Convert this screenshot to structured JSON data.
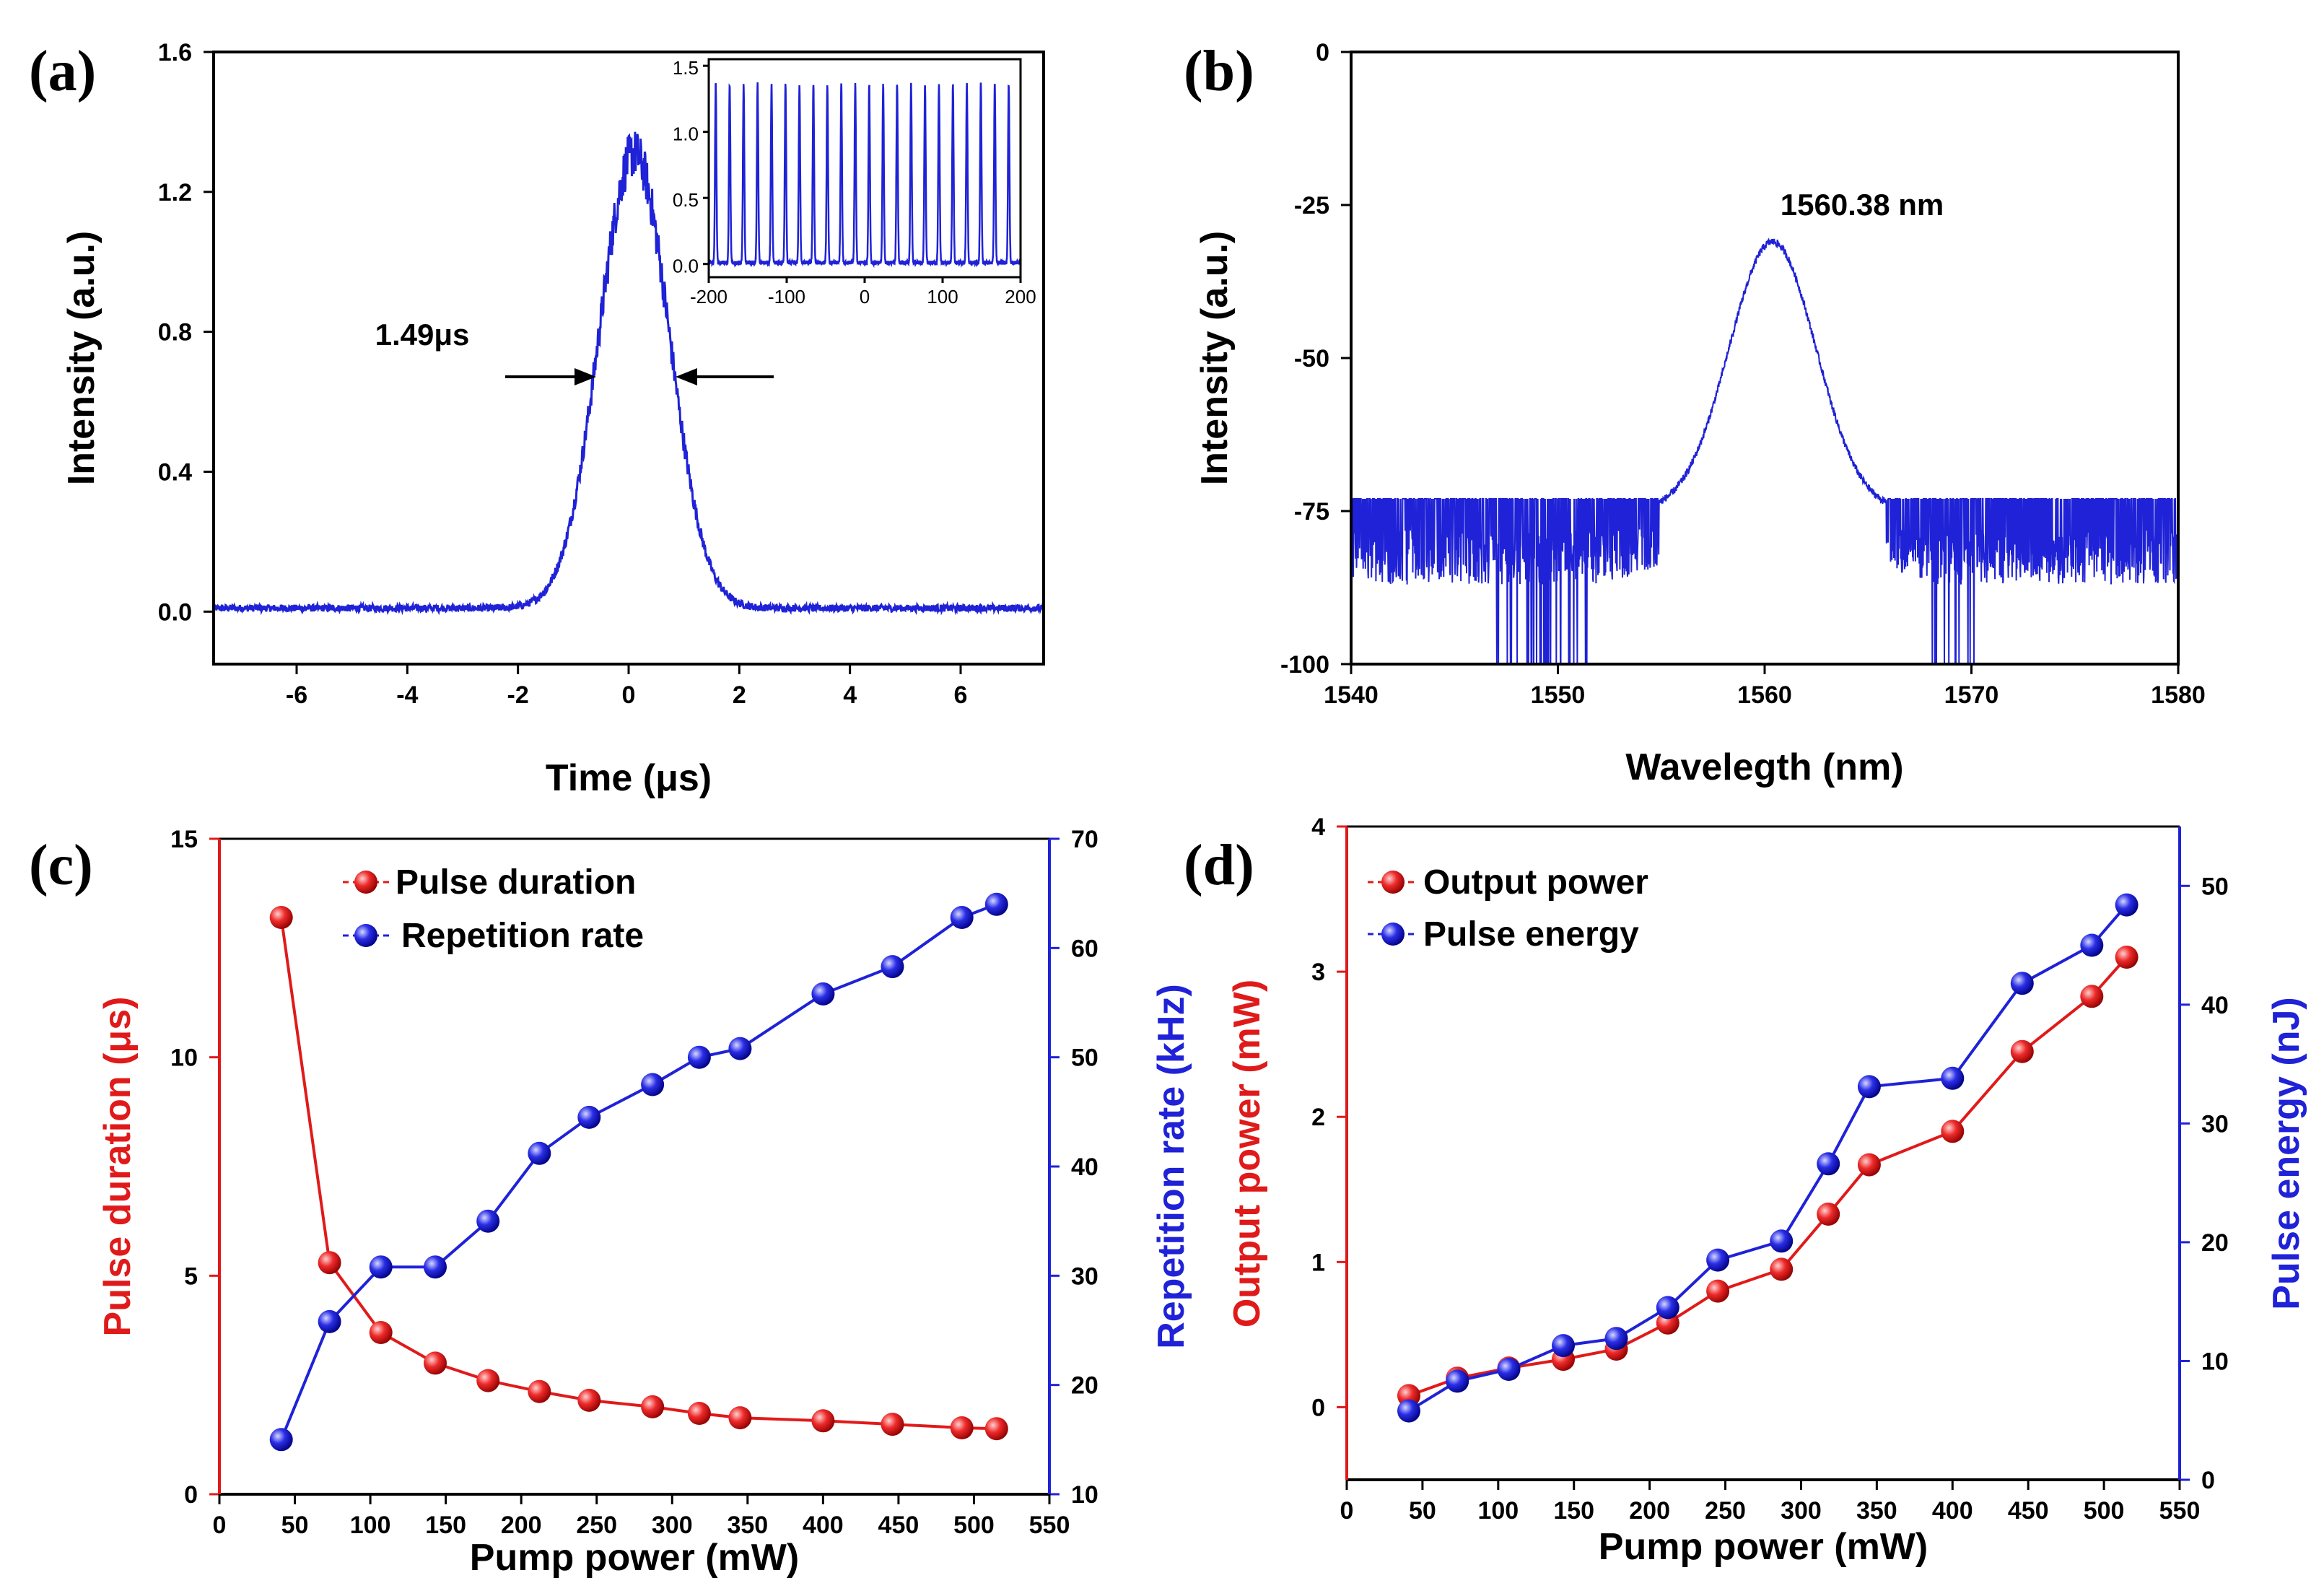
{
  "colors": {
    "blue": "#1f22d6",
    "red": "#e01a1a",
    "axis": "#000000"
  },
  "chart_data": [
    {
      "id": "a",
      "type": "line",
      "panel_label": "(a)",
      "xlabel": "Time (μs)",
      "ylabel": "Intensity (a.u.)",
      "xlim": [
        -7.5,
        7.5
      ],
      "ylim": [
        -0.15,
        1.6
      ],
      "xticks": [
        "-6",
        "-4",
        "-2",
        "0",
        "2",
        "4",
        "6"
      ],
      "yticks": [
        "0.0",
        "0.4",
        "0.8",
        "1.2",
        "1.6"
      ],
      "series": [
        {
          "name": "pulse",
          "color": "#1f22d6",
          "center": 0.1,
          "fwhm": 1.49,
          "peak": 1.3,
          "baseline": 0.01
        }
      ],
      "annotation": "1.49μs",
      "inset": {
        "xlim": [
          -200,
          200
        ],
        "ylim": [
          -0.1,
          1.55
        ],
        "xticks": [
          "-200",
          "-100",
          "0",
          "100",
          "200"
        ],
        "yticks": [
          "0.0",
          "0.5",
          "1.0",
          "1.5"
        ],
        "pulse_period": 17.9,
        "pulse_peak": 1.35
      }
    },
    {
      "id": "b",
      "type": "line",
      "panel_label": "(b)",
      "xlabel": "Wavelegth (nm)",
      "ylabel": "Intensity (a.u.)",
      "xlim": [
        1540,
        1580
      ],
      "ylim": [
        -100,
        0
      ],
      "xticks": [
        "1540",
        "1550",
        "1560",
        "1570",
        "1580"
      ],
      "yticks": [
        "-100",
        "-75",
        "-50",
        "-25",
        "0"
      ],
      "series": [
        {
          "name": "spectrum",
          "color": "#1f22d6",
          "peak_wavelength": 1560.38,
          "peak_level": -31,
          "noise_floor": -75
        }
      ],
      "annotation": "1560.38 nm"
    },
    {
      "id": "c",
      "type": "line",
      "panel_label": "(c)",
      "xlabel": "Pump power (mW)",
      "ylabel": "Pulse duration (μs)",
      "y2label": "Repetition rate (kHz)",
      "xlim": [
        0,
        550
      ],
      "ylim": [
        0,
        15
      ],
      "y2lim": [
        10,
        70
      ],
      "xticks": [
        "0",
        "50",
        "100",
        "150",
        "200",
        "250",
        "300",
        "350",
        "400",
        "450",
        "500",
        "550"
      ],
      "yticks": [
        "0",
        "5",
        "10",
        "15"
      ],
      "y2ticks": [
        "10",
        "20",
        "30",
        "40",
        "50",
        "60",
        "70"
      ],
      "x": [
        41,
        73,
        107,
        143,
        178,
        212,
        245,
        287,
        318,
        345,
        400,
        446,
        492,
        515
      ],
      "series": [
        {
          "name": "Pulse duration",
          "axis": "left",
          "color": "#e01a1a",
          "values": [
            13.2,
            5.3,
            3.7,
            3.0,
            2.6,
            2.35,
            2.15,
            2.0,
            1.85,
            1.75,
            1.68,
            1.6,
            1.52,
            1.5
          ]
        },
        {
          "name": "Repetition rate",
          "axis": "right",
          "color": "#1f22d6",
          "values": [
            15.0,
            25.8,
            30.8,
            30.8,
            35.0,
            41.2,
            44.5,
            47.5,
            50.0,
            50.8,
            55.8,
            58.3,
            62.8,
            64.0
          ]
        }
      ],
      "legend": [
        "Pulse duration",
        "Repetition rate"
      ]
    },
    {
      "id": "d",
      "type": "line",
      "panel_label": "(d)",
      "xlabel": "Pump power (mW)",
      "ylabel": "Output power (mW)",
      "y2label": "Pulse energy (nJ)",
      "xlim": [
        0,
        550
      ],
      "ylim": [
        -0.5,
        4
      ],
      "y2lim": [
        0,
        55
      ],
      "xticks": [
        "0",
        "50",
        "100",
        "150",
        "200",
        "250",
        "300",
        "350",
        "400",
        "450",
        "500",
        "550"
      ],
      "yticks": [
        "0",
        "1",
        "2",
        "3",
        "4"
      ],
      "y2ticks": [
        "0",
        "10",
        "20",
        "30",
        "40",
        "50"
      ],
      "x": [
        41,
        73,
        107,
        143,
        178,
        212,
        245,
        287,
        318,
        345,
        400,
        446,
        492,
        515
      ],
      "series": [
        {
          "name": "Output power",
          "axis": "left",
          "color": "#e01a1a",
          "values": [
            0.08,
            0.2,
            0.27,
            0.33,
            0.4,
            0.58,
            0.8,
            0.95,
            1.33,
            1.67,
            1.9,
            2.45,
            2.83,
            3.1
          ]
        },
        {
          "name": "Pulse energy",
          "axis": "right",
          "color": "#1f22d6",
          "values": [
            5.8,
            8.3,
            9.3,
            11.3,
            11.9,
            14.5,
            18.5,
            20.1,
            26.6,
            33.1,
            33.8,
            41.8,
            45.0,
            48.4
          ]
        }
      ],
      "legend": [
        "Output power",
        "Pulse energy"
      ]
    }
  ]
}
